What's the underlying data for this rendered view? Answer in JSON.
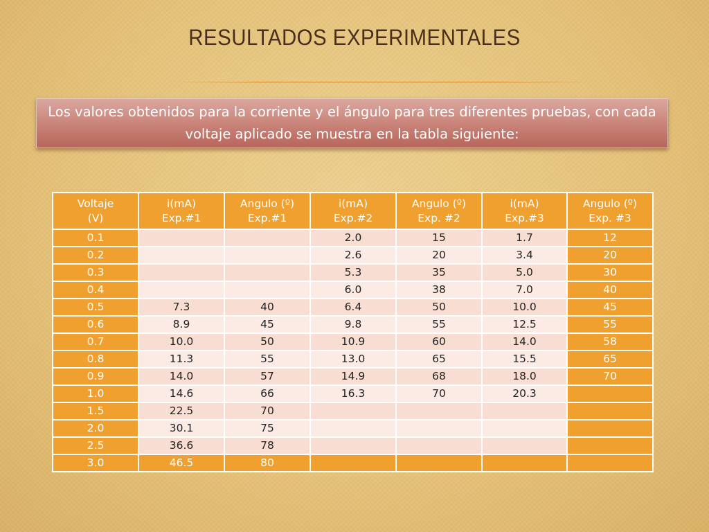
{
  "slide": {
    "title": "RESULTADOS EXPERIMENTALES",
    "intro": "Los valores obtenidos para la corriente y el ángulo para tres diferentes pruebas, con cada voltaje aplicado se muestra en la tabla siguiente:"
  },
  "colors": {
    "accent": "#efa02f",
    "title": "#4a2e1c",
    "callout": "#c88277",
    "row_band_a": "#f7ddd2",
    "row_band_b": "#fcebe4"
  },
  "table": {
    "headers": [
      [
        "Voltaje",
        "(V)"
      ],
      [
        "i(mA)",
        "Exp.#1"
      ],
      [
        "Angulo (º)",
        "Exp.#1"
      ],
      [
        "i(mA)",
        "Exp.#2"
      ],
      [
        "Angulo (º)",
        "Exp. #2"
      ],
      [
        "i(mA)",
        "Exp.#3"
      ],
      [
        "Angulo (º)",
        "Exp. #3"
      ]
    ],
    "rows": [
      [
        "0.1",
        "",
        "",
        "2.0",
        "15",
        "1.7",
        "12"
      ],
      [
        "0.2",
        "",
        "",
        "2.6",
        "20",
        "3.4",
        "20"
      ],
      [
        "0.3",
        "",
        "",
        "5.3",
        "35",
        "5.0",
        "30"
      ],
      [
        "0.4",
        "",
        "",
        "6.0",
        "38",
        "7.0",
        "40"
      ],
      [
        "0.5",
        "7.3",
        "40",
        "6.4",
        "50",
        "10.0",
        "45"
      ],
      [
        "0.6",
        "8.9",
        "45",
        "9.8",
        "55",
        "12.5",
        "55"
      ],
      [
        "0.7",
        "10.0",
        "50",
        "10.9",
        "60",
        "14.0",
        "58"
      ],
      [
        "0.8",
        "11.3",
        "55",
        "13.0",
        "65",
        "15.5",
        "65"
      ],
      [
        "0.9",
        "14.0",
        "57",
        "14.9",
        "68",
        "18.0",
        "70"
      ],
      [
        "1.0",
        "14.6",
        "66",
        "16.3",
        "70",
        "20.3",
        ""
      ],
      [
        "1.5",
        "22.5",
        "70",
        "",
        "",
        "",
        ""
      ],
      [
        "2.0",
        "30.1",
        "75",
        "",
        "",
        "",
        ""
      ],
      [
        "2.5",
        "36.6",
        "78",
        "",
        "",
        "",
        ""
      ],
      [
        "3.0",
        "46.5",
        "80",
        "",
        "",
        "",
        ""
      ]
    ]
  }
}
